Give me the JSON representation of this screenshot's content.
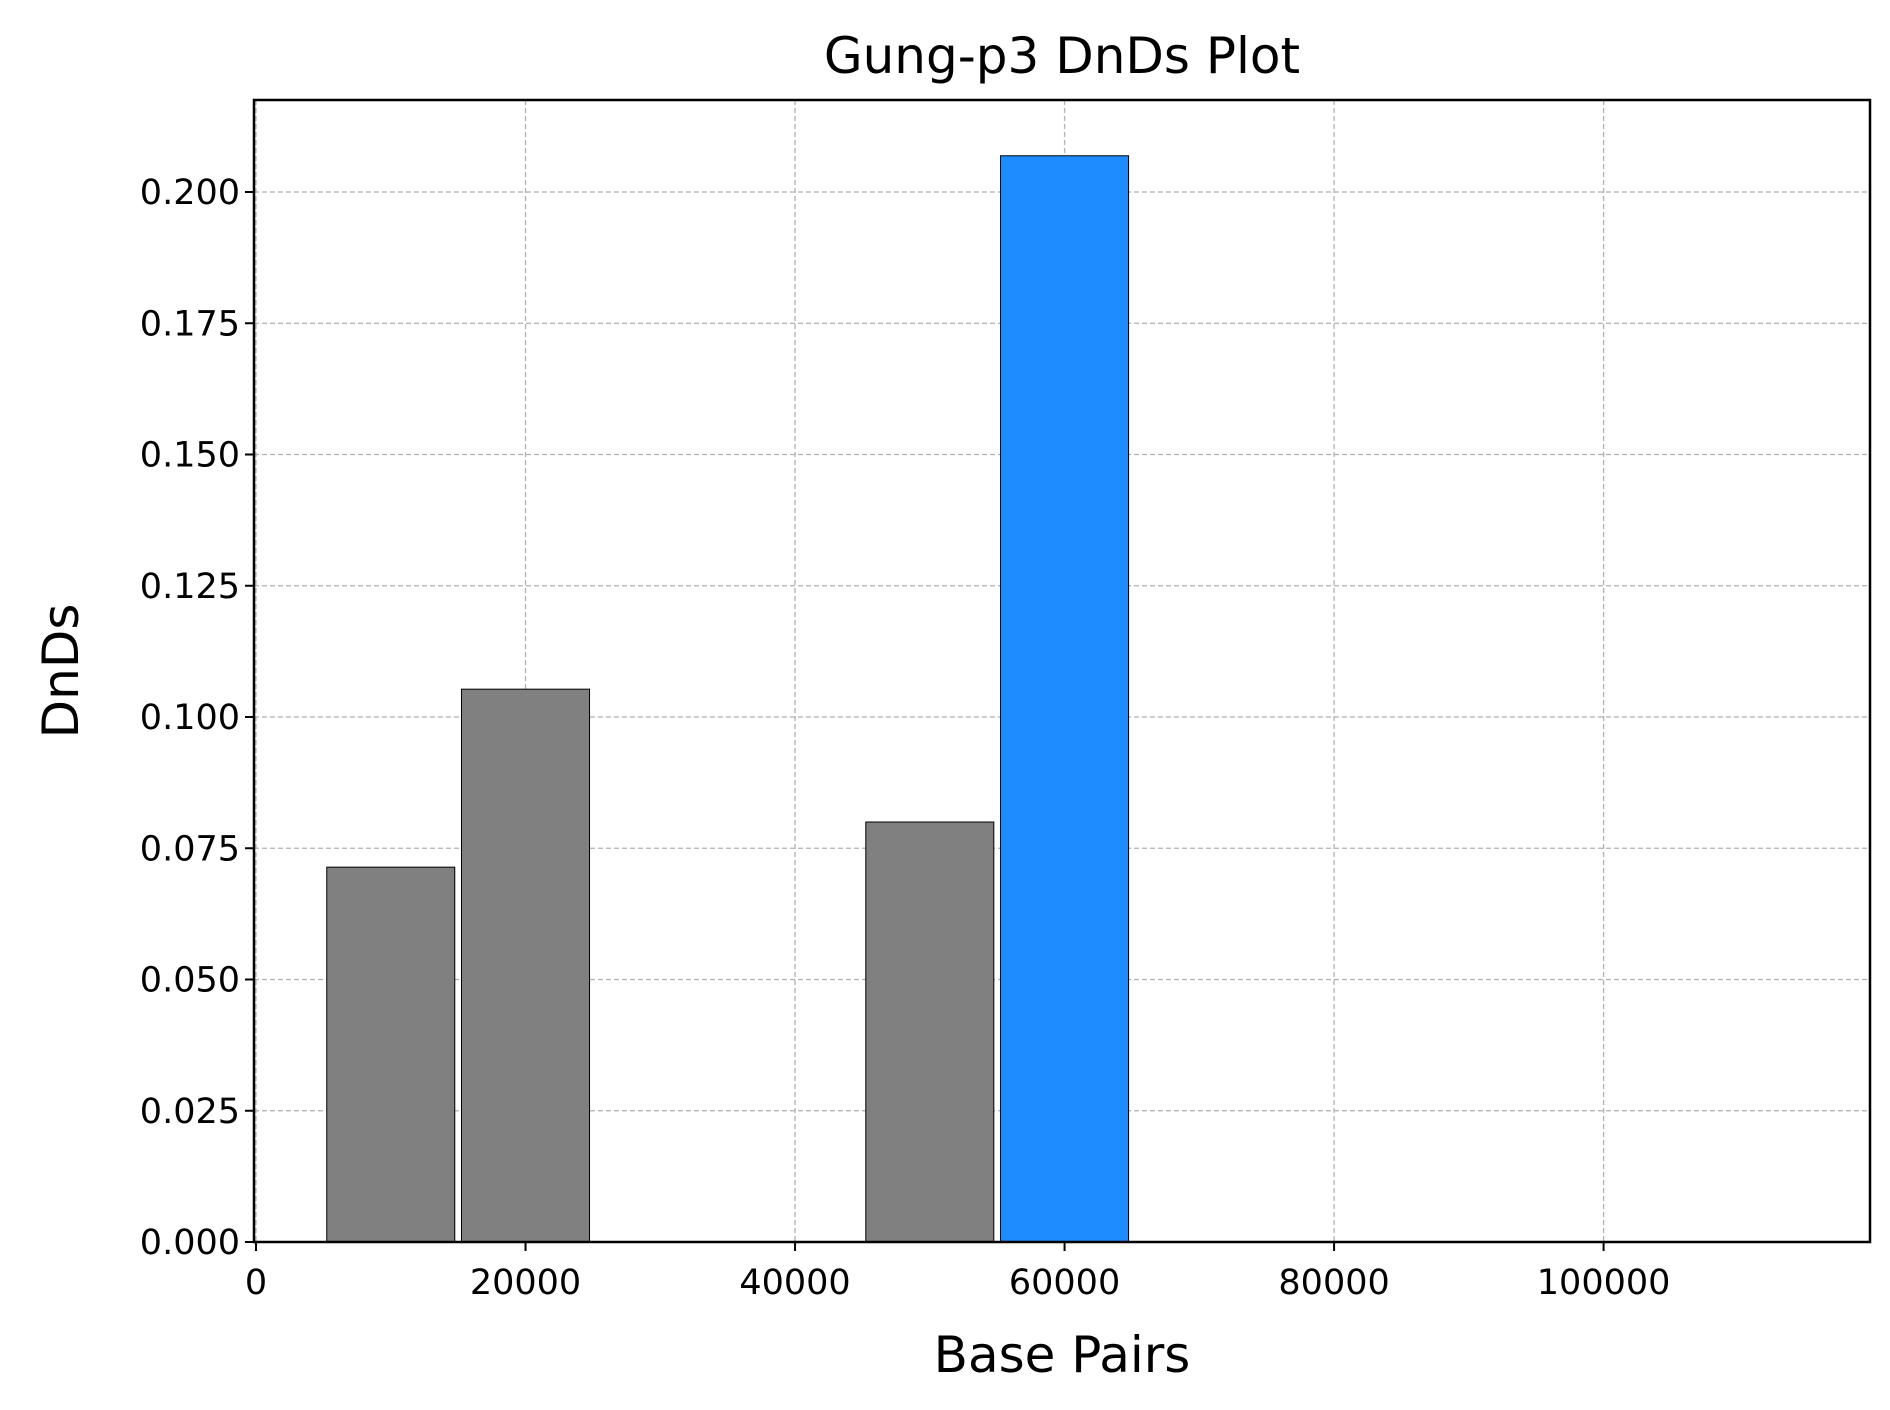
{
  "chart_data": {
    "type": "bar",
    "title": "Gung-p3 DnDs Plot",
    "xlabel": "Base Pairs",
    "ylabel": "DnDs",
    "xlim": [
      0,
      120000
    ],
    "ylim": [
      0,
      0.2175
    ],
    "grid": true,
    "x_ticks": [
      0,
      20000,
      40000,
      60000,
      80000,
      100000
    ],
    "y_ticks": [
      0,
      0.025,
      0.05,
      0.075,
      0.1,
      0.125,
      0.15,
      0.175,
      0.2
    ],
    "x_tick_labels": [
      "0",
      "20000",
      "40000",
      "60000",
      "80000",
      "100000"
    ],
    "y_tick_labels": [
      "0.000",
      "0.025",
      "0.050",
      "0.075",
      "0.100",
      "0.125",
      "0.150",
      "0.175",
      "0.200"
    ],
    "bin_width": 9500,
    "bars": [
      {
        "x": 10000,
        "value": 0.0714,
        "color": "#808080"
      },
      {
        "x": 20000,
        "value": 0.1053,
        "color": "#808080"
      },
      {
        "x": 50000,
        "value": 0.08,
        "color": "#808080"
      },
      {
        "x": 60000,
        "value": 0.2069,
        "color": "#1e8cff"
      }
    ],
    "colors": {
      "default_bar": "#808080",
      "highlight_bar": "#1e8cff",
      "edge": "#000000",
      "grid": "#b0b0b0"
    }
  }
}
